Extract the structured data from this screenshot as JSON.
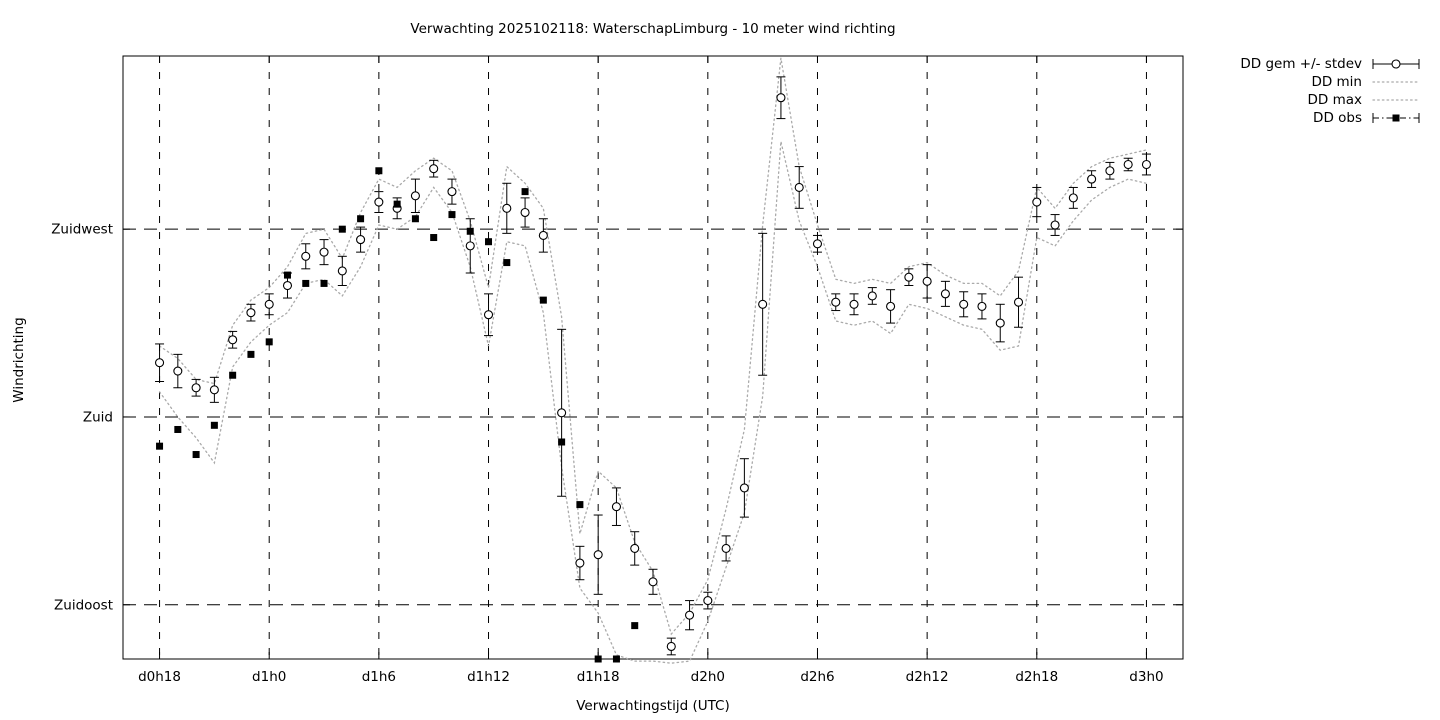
{
  "chart_data": {
    "type": "line",
    "title": "Verwachting 2025102118: WaterschapLimburg - 10 meter wind richting",
    "xlabel": "Verwachtingstijd (UTC)",
    "ylabel": "Windrichting",
    "x_tick_labels": [
      "d0h18",
      "d1h0",
      "d1h6",
      "d1h12",
      "d1h18",
      "d2h0",
      "d2h6",
      "d2h12",
      "d2h18",
      "d3h0"
    ],
    "x_tick_positions": [
      0,
      6,
      12,
      18,
      24,
      30,
      36,
      42,
      48,
      54
    ],
    "x_range": [
      -2,
      56
    ],
    "x_step_hours": 1,
    "y_tick_labels": [
      "Zuidwest",
      "Zuid",
      "Zuidoost"
    ],
    "y_tick_values": [
      225,
      180,
      135
    ],
    "y_range": [
      122,
      266.5
    ],
    "y_unit": "wind direction (degrees)",
    "grid": true,
    "legend_position": "outside-top-right",
    "legend": [
      "DD gem +/- stdev",
      "DD min",
      "DD max",
      "DD obs"
    ],
    "colors": {
      "mean": "#000000",
      "obs": "#000000",
      "minmax": "#aaaaaa",
      "grid": "#000000",
      "background": "#ffffff"
    },
    "series": {
      "mean": [
        193,
        191,
        187,
        186.5,
        198.5,
        205,
        207,
        211.5,
        218.5,
        219.5,
        215,
        222.5,
        231.5,
        230,
        233,
        239.5,
        234,
        221,
        204.5,
        230,
        229,
        223.5,
        181,
        145,
        147,
        158.5,
        148.5,
        140.5,
        125,
        132.5,
        136,
        148.5,
        163,
        207,
        256.5,
        235,
        221.5,
        207.5,
        207,
        209,
        206.5,
        213.5,
        212.5,
        209.5,
        207,
        206.5,
        202.5,
        207.5,
        231.5,
        226,
        232.5,
        237,
        239,
        240.5,
        240.5
      ],
      "stdev": [
        4.5,
        4,
        2,
        3,
        2,
        2,
        2.5,
        3,
        3,
        3,
        3.5,
        3,
        2.5,
        2.5,
        4,
        2,
        3,
        6.5,
        5,
        6,
        3.5,
        4,
        20,
        4,
        9.5,
        4.5,
        4,
        3,
        2,
        3.5,
        2,
        3,
        7,
        17,
        5,
        5,
        2,
        2,
        2.5,
        2,
        4,
        2,
        4,
        3,
        3,
        3,
        4.5,
        6,
        3.5,
        2.5,
        2.5,
        2,
        2,
        1.5,
        2.5
      ],
      "min": [
        186,
        180,
        175,
        169,
        192,
        198,
        202,
        205,
        212,
        213,
        209,
        216,
        226,
        225,
        228,
        235,
        229,
        216,
        197,
        222,
        221,
        205,
        168,
        139,
        133,
        123,
        121.5,
        121.5,
        121,
        121.5,
        131,
        144,
        157,
        185,
        246,
        227,
        216,
        203,
        202,
        203,
        200,
        207,
        206,
        204,
        202,
        201,
        196,
        197,
        223,
        221,
        227,
        232,
        235,
        237,
        236
      ],
      "max": [
        197,
        194,
        189,
        188,
        202,
        208,
        211,
        216,
        224,
        225,
        218,
        229,
        237,
        235,
        239,
        242,
        239,
        227,
        211,
        240,
        236,
        230,
        204,
        152,
        167,
        163,
        150,
        143,
        128,
        133,
        141,
        158,
        177,
        226,
        266,
        240,
        226,
        213,
        212,
        213,
        212,
        216,
        217,
        214,
        212,
        212,
        209,
        215,
        235,
        230,
        236,
        240,
        242,
        243,
        244
      ],
      "obs": [
        173,
        177,
        171,
        178,
        190,
        195,
        198,
        214,
        212,
        212,
        225,
        227.5,
        239,
        231,
        227.5,
        223,
        228.5,
        224.5,
        222,
        217,
        234,
        208,
        174,
        159,
        122,
        122,
        130,
        null,
        null,
        null,
        null,
        null,
        null,
        null,
        null,
        null,
        null,
        null,
        null,
        null,
        null,
        null,
        null,
        null,
        null,
        null,
        null,
        null,
        null,
        null,
        null,
        null,
        null,
        null,
        null
      ]
    }
  }
}
